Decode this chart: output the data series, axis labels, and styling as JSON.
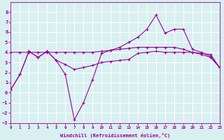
{
  "x_ticks": [
    0,
    1,
    2,
    3,
    4,
    5,
    6,
    7,
    8,
    9,
    10,
    11,
    12,
    13,
    14,
    15,
    16,
    17,
    18,
    19,
    20,
    21,
    22,
    23
  ],
  "y_ticks": [
    -3,
    -2,
    -1,
    0,
    1,
    2,
    3,
    4,
    5,
    6,
    7,
    8
  ],
  "line1_x": [
    0,
    1,
    2,
    3,
    4,
    5,
    6,
    7,
    8,
    9,
    10,
    11,
    12,
    13,
    14,
    15,
    16,
    17,
    18,
    19,
    20,
    21,
    22,
    23
  ],
  "line1_y": [
    0.3,
    1.8,
    4.1,
    3.5,
    4.1,
    3.2,
    1.8,
    -2.7,
    -1.0,
    1.3,
    3.9,
    4.2,
    4.5,
    5.0,
    5.5,
    6.3,
    7.7,
    5.9,
    6.3,
    6.3,
    4.3,
    4.0,
    3.6,
    2.5
  ],
  "line2_x": [
    0,
    1,
    2,
    3,
    4,
    5,
    6,
    7,
    8,
    9,
    10,
    11,
    12,
    13,
    14,
    15,
    16,
    17,
    18,
    19,
    20,
    21,
    22,
    23
  ],
  "line2_y": [
    4.0,
    4.0,
    4.0,
    4.0,
    4.0,
    4.0,
    4.0,
    4.0,
    4.0,
    4.0,
    4.1,
    4.2,
    4.3,
    4.4,
    4.5,
    4.5,
    4.5,
    4.5,
    4.5,
    4.3,
    4.0,
    3.8,
    3.5,
    2.5
  ],
  "line3_x": [
    0,
    1,
    2,
    3,
    4,
    5,
    6,
    7,
    8,
    9,
    10,
    11,
    12,
    13,
    14,
    15,
    16,
    17,
    18,
    19,
    20,
    21,
    22,
    23
  ],
  "line3_y": [
    0.3,
    1.8,
    4.1,
    3.5,
    4.1,
    3.2,
    2.8,
    2.3,
    2.5,
    2.7,
    3.0,
    3.1,
    3.2,
    3.3,
    3.9,
    4.0,
    4.1,
    4.0,
    4.0,
    4.0,
    4.0,
    3.9,
    3.8,
    2.5
  ],
  "color": "#990099",
  "bg_color": "#d8f0f0",
  "grid_color": "#ffffff",
  "xlabel": "Windchill (Refroidissement éolien,°C)",
  "ylim": [
    -3,
    9
  ],
  "xlim": [
    0,
    23
  ]
}
